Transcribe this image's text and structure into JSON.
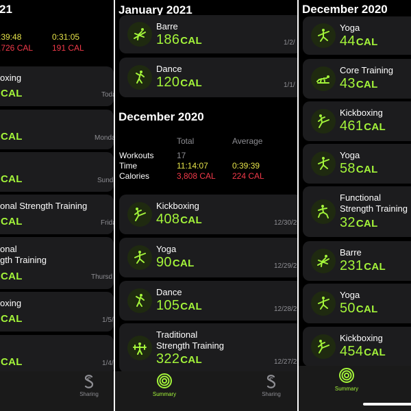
{
  "colors": {
    "accent_green": "#a4f53a",
    "yellow": "#e7e44a",
    "red": "#f33a4a",
    "card_bg": "#1c1c1e"
  },
  "left_panel": {
    "heading": "21",
    "summary": {
      "time_total": ":39:48",
      "time_avg": "0:31:05",
      "cal_total": ",726 CAL",
      "cal_avg": "191 CAL"
    },
    "cards": [
      {
        "name": "oxing",
        "value": "",
        "unit": "CAL",
        "date": "Toda"
      },
      {
        "name": "",
        "value": "",
        "unit": "CAL",
        "date": "Monda"
      },
      {
        "name": "",
        "value": "",
        "unit": "CAL",
        "date": "Sunda"
      },
      {
        "name": "onal Strength Training",
        "value": "",
        "unit": "CAL",
        "date": "Frida"
      },
      {
        "name": "onal\ngth Training",
        "value": "",
        "unit": "CAL",
        "date": "Thursd"
      },
      {
        "name": "oxing",
        "value": "",
        "unit": "CAL",
        "date": "1/5/"
      },
      {
        "name": "",
        "value": "",
        "unit": "CAL",
        "date": "1/4/"
      }
    ],
    "tabs": {
      "sharing": "Sharing"
    }
  },
  "mid_panel": {
    "heading_top": "January 2021",
    "cards_top": [
      {
        "name": "Barre",
        "value": "186",
        "unit": "CAL",
        "date": "1/2/",
        "icon": "barre-icon"
      },
      {
        "name": "Dance",
        "value": "120",
        "unit": "CAL",
        "date": "1/1/",
        "icon": "dance-icon"
      }
    ],
    "heading_month": "December 2020",
    "summary": {
      "col_total": "Total",
      "col_average": "Average",
      "row_workouts": "Workouts",
      "row_time": "Time",
      "row_calories": "Calories",
      "workouts_total": "17",
      "time_total": "11:14:07",
      "time_avg": "0:39:39",
      "cal_total": "3,808 CAL",
      "cal_avg": "224 CAL"
    },
    "cards": [
      {
        "name": "Kickboxing",
        "value": "408",
        "unit": "CAL",
        "date": "12/30/2",
        "icon": "kickboxing-icon"
      },
      {
        "name": "Yoga",
        "value": "90",
        "unit": "CAL",
        "date": "12/29/2",
        "icon": "yoga-icon"
      },
      {
        "name": "Dance",
        "value": "105",
        "unit": "CAL",
        "date": "12/28/2",
        "icon": "dance-icon"
      },
      {
        "name": "Traditional\nStrength Training",
        "value": "322",
        "unit": "CAL",
        "date": "12/27/2",
        "icon": "weightlifting-icon"
      }
    ],
    "tabs": {
      "summary": "Summary",
      "sharing": "Sharing"
    }
  },
  "right_panel": {
    "heading": "December 2020",
    "cards": [
      {
        "name": "Yoga",
        "value": "44",
        "unit": "CAL",
        "icon": "yoga-icon"
      },
      {
        "name": "Core Training",
        "value": "43",
        "unit": "CAL",
        "icon": "core-training-icon"
      },
      {
        "name": "Kickboxing",
        "value": "461",
        "unit": "CAL",
        "icon": "kickboxing-icon"
      },
      {
        "name": "Yoga",
        "value": "58",
        "unit": "CAL",
        "icon": "yoga-icon"
      },
      {
        "name": "Functional\nStrength Training",
        "value": "32",
        "unit": "CAL",
        "icon": "functional-strength-icon"
      },
      {
        "name": "Barre",
        "value": "231",
        "unit": "CAL",
        "icon": "barre-icon"
      },
      {
        "name": "Yoga",
        "value": "50",
        "unit": "CAL",
        "icon": "yoga-icon"
      },
      {
        "name": "Kickboxing",
        "value": "454",
        "unit": "CAL",
        "icon": "kickboxing-icon"
      }
    ],
    "tabs": {
      "summary": "Summary"
    }
  }
}
